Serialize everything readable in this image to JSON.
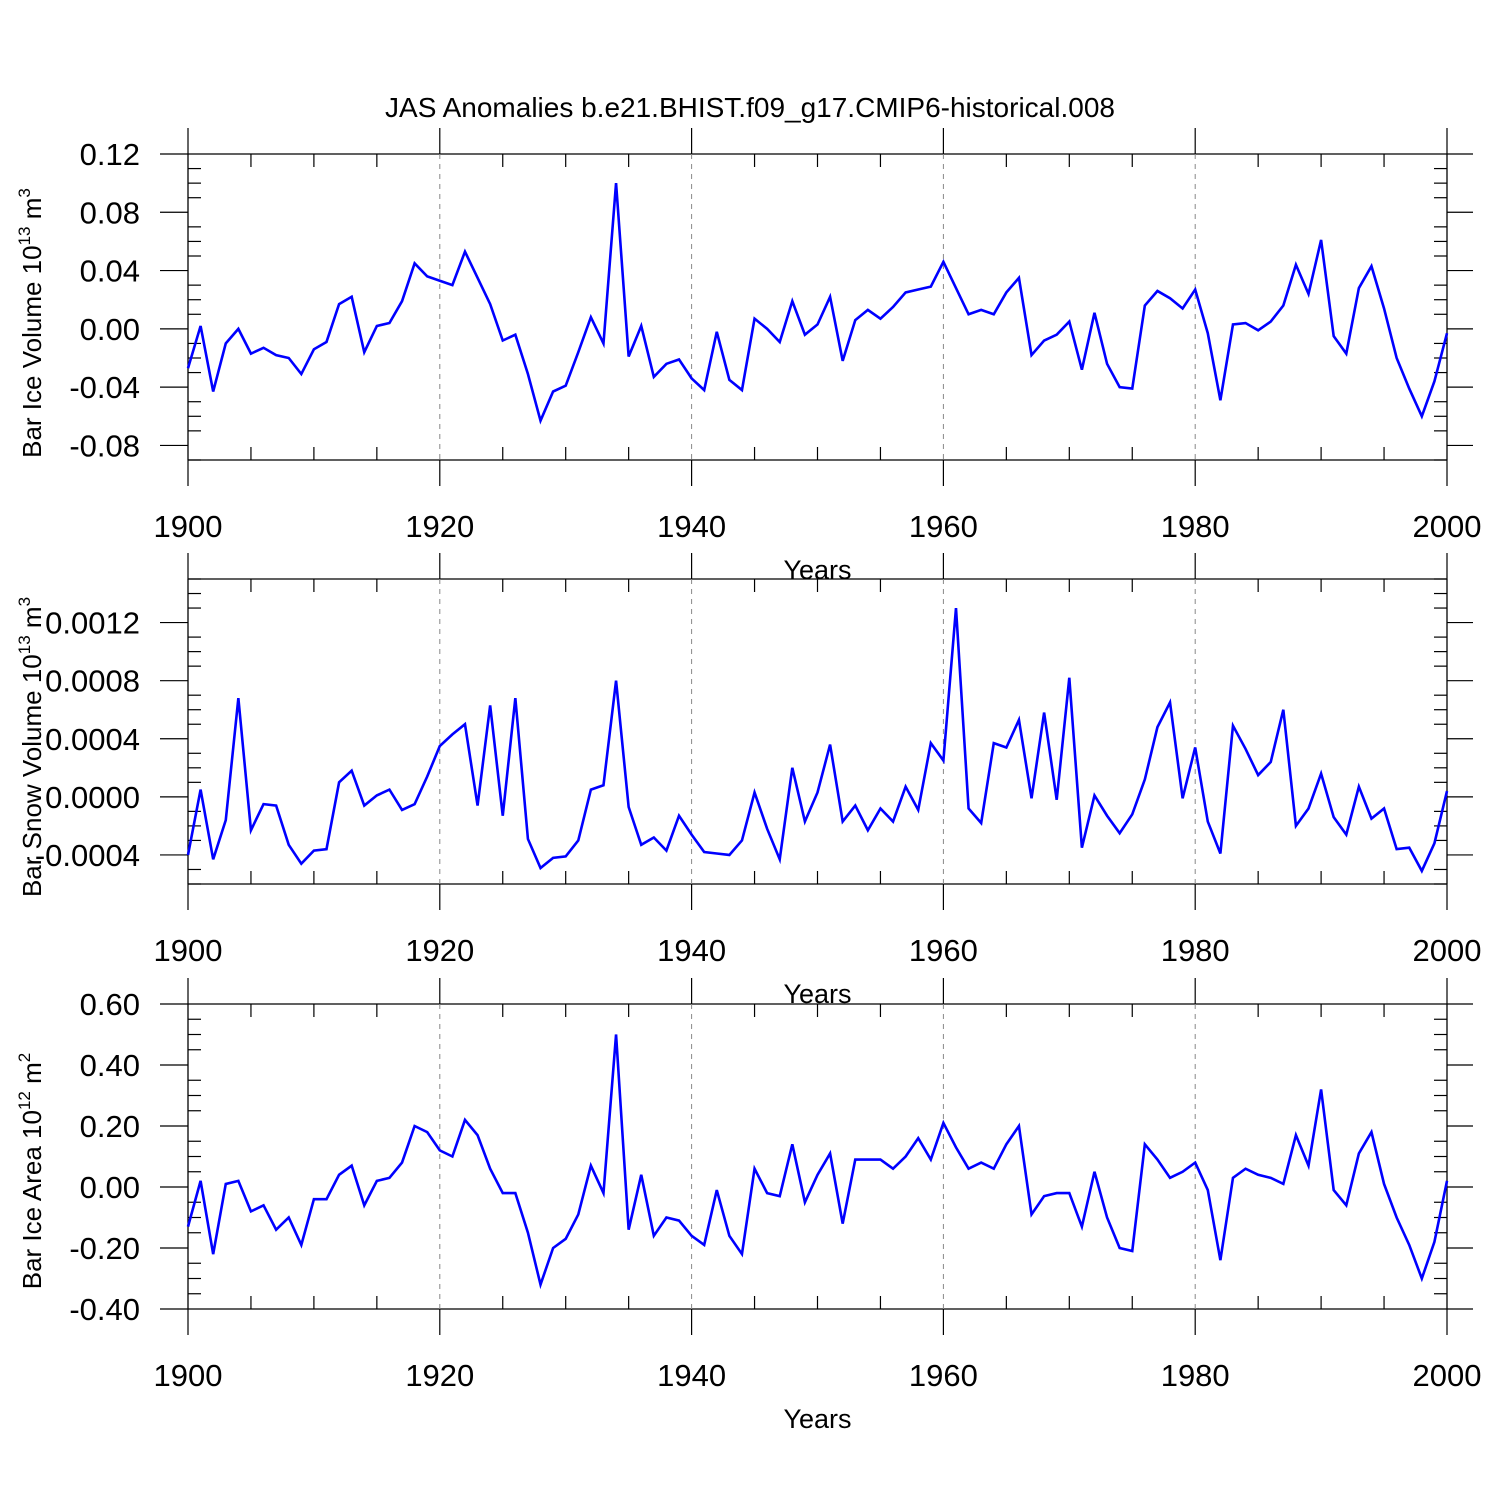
{
  "title": "JAS Anomalies b.e21.BHIST.f09_g17.CMIP6-historical.008",
  "line_color": "#0000ff",
  "chart_data": [
    {
      "type": "line",
      "title": "",
      "xlabel": "Years",
      "ylabel": {
        "text": "Bar Ice Volume 10",
        "sup": "13",
        "unit": " m",
        "unit_sup": "3"
      },
      "xlim": [
        1900,
        2000
      ],
      "ylim": [
        -0.09,
        0.12
      ],
      "x_ticks": [
        1900,
        1920,
        1940,
        1960,
        1980,
        2000
      ],
      "y_ticks": [
        -0.08,
        -0.04,
        0.0,
        0.04,
        0.08,
        0.12
      ],
      "y_tick_labels": [
        "-0.08",
        "-0.04",
        "0.00",
        "0.04",
        "0.08",
        "0.12"
      ],
      "grid": "vertical dashed at major x ticks",
      "series": [
        {
          "x_start": 1900,
          "values": [
            -0.027,
            0.002,
            -0.043,
            -0.01,
            0.0,
            -0.017,
            -0.013,
            -0.018,
            -0.02,
            -0.031,
            -0.014,
            -0.009,
            0.017,
            0.022,
            -0.016,
            0.002,
            0.004,
            0.019,
            0.045,
            0.036,
            0.033,
            0.03,
            0.053,
            0.035,
            0.017,
            -0.008,
            -0.004,
            -0.031,
            -0.063,
            -0.043,
            -0.039,
            -0.016,
            0.008,
            -0.01,
            0.1,
            -0.019,
            0.002,
            -0.033,
            -0.024,
            -0.021,
            -0.034,
            -0.042,
            -0.002,
            -0.035,
            -0.042,
            0.007,
            0.0,
            -0.009,
            0.019,
            -0.004,
            0.003,
            0.022,
            -0.022,
            0.006,
            0.013,
            0.007,
            0.015,
            0.025,
            0.027,
            0.029,
            0.046,
            0.028,
            0.01,
            0.013,
            0.01,
            0.025,
            0.035,
            -0.018,
            -0.008,
            -0.004,
            0.005,
            -0.028,
            0.011,
            -0.024,
            -0.04,
            -0.041,
            0.016,
            0.026,
            0.021,
            0.014,
            0.027,
            -0.003,
            -0.049,
            0.003,
            0.004,
            -0.001,
            0.005,
            0.016,
            0.044,
            0.024,
            0.061,
            -0.005,
            -0.017,
            0.028,
            0.043,
            0.014,
            -0.02,
            -0.041,
            -0.06,
            -0.036,
            -0.003
          ]
        }
      ]
    },
    {
      "type": "line",
      "title": "",
      "xlabel": "Years",
      "ylabel": {
        "text": "Bar Snow Volume 10",
        "sup": "13",
        "unit": " m",
        "unit_sup": "3"
      },
      "xlim": [
        1900,
        2000
      ],
      "ylim": [
        -0.0006,
        0.0015
      ],
      "x_ticks": [
        1900,
        1920,
        1940,
        1960,
        1980,
        2000
      ],
      "y_ticks": [
        -0.0004,
        0.0,
        0.0004,
        0.0008,
        0.0012
      ],
      "y_tick_labels": [
        "-0.0004",
        "0.0000",
        "0.0004",
        "0.0008",
        "0.0012"
      ],
      "grid": "vertical dashed at major x ticks",
      "series": [
        {
          "x_start": 1900,
          "values": [
            -0.0004,
            5e-05,
            -0.00043,
            -0.00016,
            0.00068,
            -0.00023,
            -5e-05,
            -6e-05,
            -0.00033,
            -0.00046,
            -0.00037,
            -0.00036,
            0.0001,
            0.00018,
            -6e-05,
            1e-05,
            5e-05,
            -9e-05,
            -5e-05,
            0.00014,
            0.00035,
            0.00043,
            0.0005,
            -6e-05,
            0.00063,
            -0.00013,
            0.00068,
            -0.00029,
            -0.00049,
            -0.00042,
            -0.00041,
            -0.0003,
            5e-05,
            8e-05,
            0.0008,
            -7e-05,
            -0.00033,
            -0.00028,
            -0.00037,
            -0.00013,
            -0.00026,
            -0.00038,
            -0.00039,
            -0.0004,
            -0.0003,
            3e-05,
            -0.00022,
            -0.00043,
            0.0002,
            -0.00017,
            3e-05,
            0.00036,
            -0.00017,
            -6e-05,
            -0.00023,
            -8e-05,
            -0.00017,
            7e-05,
            -9e-05,
            0.00037,
            0.00025,
            0.0013,
            -8e-05,
            -0.00018,
            0.00037,
            0.00034,
            0.00053,
            -1e-05,
            0.00058,
            -2e-05,
            0.00082,
            -0.00035,
            1e-05,
            -0.00013,
            -0.00025,
            -0.00012,
            0.00012,
            0.00048,
            0.00065,
            -1e-05,
            0.00034,
            -0.00017,
            -0.00039,
            0.00049,
            0.00033,
            0.00015,
            0.00024,
            0.0006,
            -0.0002,
            -8e-05,
            0.00016,
            -0.00014,
            -0.00026,
            7e-05,
            -0.00015,
            -8e-05,
            -0.00036,
            -0.00035,
            -0.00051,
            -0.00032,
            4e-05
          ]
        }
      ]
    },
    {
      "type": "line",
      "title": "",
      "xlabel": "Years",
      "ylabel": {
        "text": "Bar Ice Area 10",
        "sup": "12",
        "unit": " m",
        "unit_sup": "2"
      },
      "xlim": [
        1900,
        2000
      ],
      "ylim": [
        -0.4,
        0.6
      ],
      "x_ticks": [
        1900,
        1920,
        1940,
        1960,
        1980,
        2000
      ],
      "y_ticks": [
        -0.4,
        -0.2,
        0.0,
        0.2,
        0.4,
        0.6
      ],
      "y_tick_labels": [
        "-0.40",
        "-0.20",
        "0.00",
        "0.20",
        "0.40",
        "0.60"
      ],
      "grid": "vertical dashed at major x ticks",
      "series": [
        {
          "x_start": 1900,
          "values": [
            -0.13,
            0.02,
            -0.22,
            0.01,
            0.02,
            -0.08,
            -0.06,
            -0.14,
            -0.1,
            -0.19,
            -0.04,
            -0.04,
            0.04,
            0.07,
            -0.06,
            0.02,
            0.03,
            0.08,
            0.2,
            0.18,
            0.12,
            0.1,
            0.22,
            0.17,
            0.06,
            -0.02,
            -0.02,
            -0.15,
            -0.32,
            -0.2,
            -0.17,
            -0.09,
            0.07,
            -0.02,
            0.5,
            -0.14,
            0.04,
            -0.16,
            -0.1,
            -0.11,
            -0.16,
            -0.19,
            -0.01,
            -0.16,
            -0.22,
            0.06,
            -0.02,
            -0.03,
            0.14,
            -0.05,
            0.04,
            0.11,
            -0.12,
            0.09,
            0.09,
            0.09,
            0.06,
            0.1,
            0.16,
            0.09,
            0.21,
            0.13,
            0.06,
            0.08,
            0.06,
            0.14,
            0.2,
            -0.09,
            -0.03,
            -0.02,
            -0.02,
            -0.13,
            0.05,
            -0.1,
            -0.2,
            -0.21,
            0.14,
            0.09,
            0.03,
            0.05,
            0.08,
            -0.01,
            -0.24,
            0.03,
            0.06,
            0.04,
            0.03,
            0.01,
            0.17,
            0.07,
            0.32,
            -0.01,
            -0.06,
            0.11,
            0.18,
            0.01,
            -0.1,
            -0.19,
            -0.3,
            -0.18,
            0.02
          ]
        }
      ]
    }
  ]
}
